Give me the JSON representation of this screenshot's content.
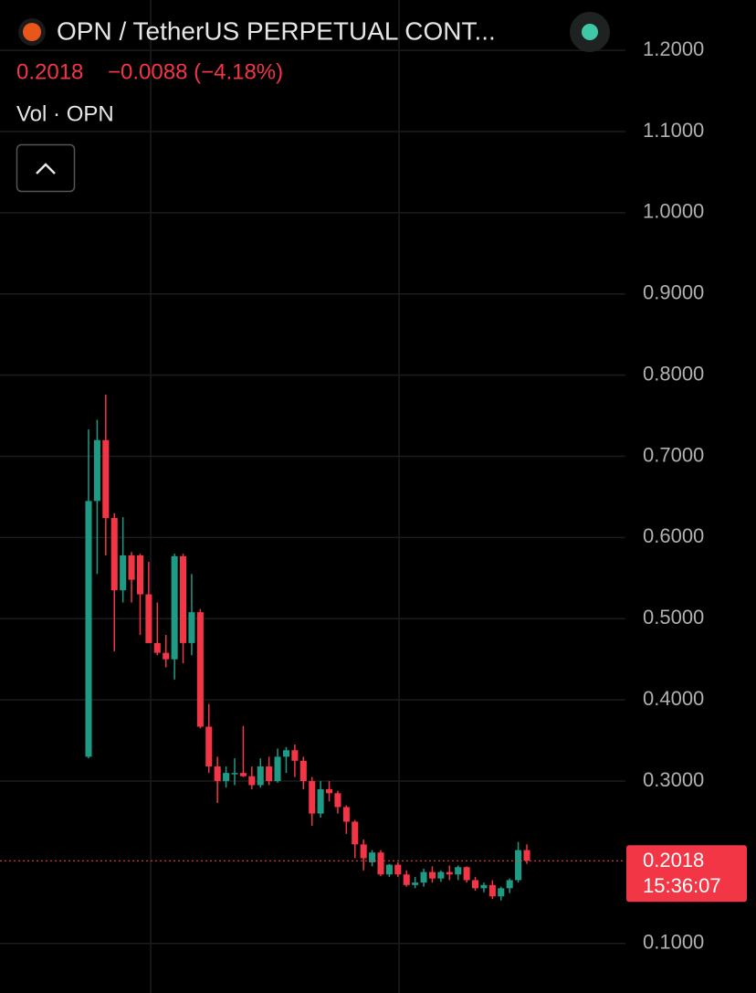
{
  "chart_data": {
    "type": "candlestick",
    "title": "OPN / TetherUS PERPETUAL CONT...",
    "change_label": "−0.0088 (−4.18%)",
    "volume_label": "Vol · OPN",
    "last_price": {
      "value": 0.2018,
      "label": "0.2018"
    },
    "time_label": "15:36:07",
    "up_color": "#1f9a85",
    "down_color": "#f23645",
    "ylim": [
      0.039,
      1.262
    ],
    "yticks": [
      {
        "value": 1.2,
        "label": "1.2000"
      },
      {
        "value": 1.1,
        "label": "1.1000"
      },
      {
        "value": 1.0,
        "label": "1.0000"
      },
      {
        "value": 0.9,
        "label": "0.9000"
      },
      {
        "value": 0.8,
        "label": "0.8000"
      },
      {
        "value": 0.7,
        "label": "0.7000"
      },
      {
        "value": 0.6,
        "label": "0.6000"
      },
      {
        "value": 0.5,
        "label": "0.5000"
      },
      {
        "value": 0.4,
        "label": "0.4000"
      },
      {
        "value": 0.3,
        "label": "0.3000"
      },
      {
        "value": 0.1,
        "label": "0.1000"
      }
    ],
    "grid": true,
    "open": [
      0.33,
      0.645,
      0.72,
      0.624,
      0.535,
      0.578,
      0.578,
      0.53,
      0.47,
      0.458,
      0.45,
      0.577,
      0.47,
      0.508,
      0.367,
      0.318,
      0.3,
      0.31,
      0.31,
      0.306,
      0.295,
      0.318,
      0.3,
      0.33,
      0.338,
      0.325,
      0.3,
      0.26,
      0.29,
      0.285,
      0.268,
      0.25,
      0.222,
      0.2,
      0.212,
      0.185,
      0.197,
      0.185,
      0.172,
      0.175,
      0.188,
      0.18,
      0.188,
      0.185,
      0.194,
      0.178,
      0.168,
      0.172,
      0.158,
      0.168,
      0.178,
      0.215
    ],
    "high": [
      0.733,
      0.745,
      0.776,
      0.63,
      0.625,
      0.582,
      0.58,
      0.57,
      0.52,
      0.48,
      0.58,
      0.58,
      0.555,
      0.512,
      0.395,
      0.33,
      0.318,
      0.328,
      0.368,
      0.318,
      0.328,
      0.33,
      0.34,
      0.342,
      0.345,
      0.33,
      0.305,
      0.3,
      0.3,
      0.288,
      0.27,
      0.252,
      0.228,
      0.215,
      0.215,
      0.198,
      0.2,
      0.19,
      0.182,
      0.192,
      0.195,
      0.19,
      0.196,
      0.196,
      0.195,
      0.182,
      0.175,
      0.178,
      0.17,
      0.18,
      0.225,
      0.222
    ],
    "low": [
      0.328,
      0.555,
      0.578,
      0.46,
      0.52,
      0.52,
      0.48,
      0.47,
      0.455,
      0.44,
      0.425,
      0.445,
      0.455,
      0.365,
      0.31,
      0.273,
      0.292,
      0.295,
      0.305,
      0.29,
      0.292,
      0.295,
      0.298,
      0.31,
      0.305,
      0.29,
      0.245,
      0.255,
      0.275,
      0.26,
      0.235,
      0.205,
      0.19,
      0.195,
      0.183,
      0.182,
      0.182,
      0.17,
      0.168,
      0.17,
      0.175,
      0.176,
      0.178,
      0.178,
      0.175,
      0.165,
      0.163,
      0.155,
      0.153,
      0.162,
      0.175,
      0.198
    ],
    "close": [
      0.645,
      0.72,
      0.624,
      0.535,
      0.578,
      0.548,
      0.53,
      0.47,
      0.458,
      0.45,
      0.577,
      0.47,
      0.508,
      0.367,
      0.318,
      0.3,
      0.31,
      0.31,
      0.306,
      0.295,
      0.318,
      0.3,
      0.33,
      0.338,
      0.325,
      0.3,
      0.26,
      0.29,
      0.285,
      0.268,
      0.25,
      0.222,
      0.205,
      0.212,
      0.185,
      0.197,
      0.185,
      0.172,
      0.175,
      0.188,
      0.18,
      0.188,
      0.185,
      0.194,
      0.178,
      0.168,
      0.172,
      0.158,
      0.168,
      0.178,
      0.215,
      0.2018
    ]
  }
}
